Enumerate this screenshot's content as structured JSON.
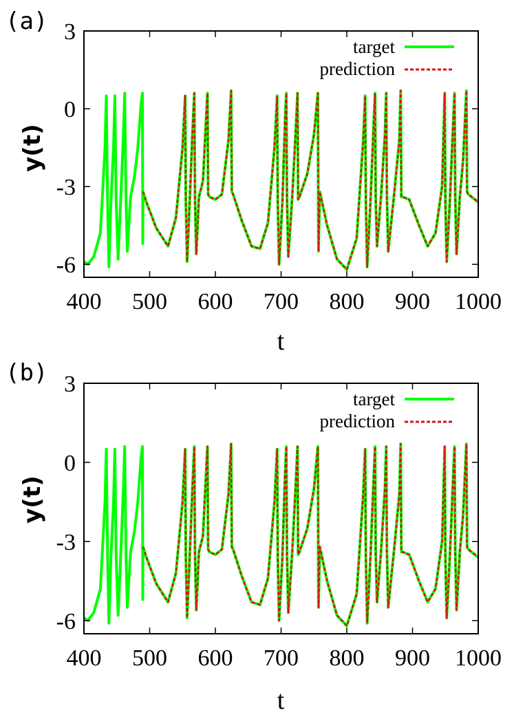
{
  "colors": {
    "target": "#00ff00",
    "prediction": "#dd1111",
    "axes": "#000000"
  },
  "chart_data": [
    {
      "type": "line",
      "panel_label": "(a)",
      "xlabel": "t",
      "ylabel": "y(t)",
      "xlim": [
        400,
        1000
      ],
      "ylim": [
        -6.5,
        3
      ],
      "xticks": [
        "400",
        "500",
        "600",
        "700",
        "800",
        "900",
        "1000"
      ],
      "yticks": [
        "3",
        "0",
        "-3",
        "-6"
      ],
      "ytick_values": [
        3,
        0,
        -3,
        -6
      ],
      "xtick_values": [
        400,
        500,
        600,
        700,
        800,
        900,
        1000
      ],
      "legend": "top-right",
      "prediction_start": 490,
      "series": [
        {
          "name": "target",
          "x": [
            400,
            406,
            415,
            425,
            432,
            434,
            436,
            438,
            441,
            445,
            447,
            449,
            452,
            456,
            460,
            462,
            464,
            466,
            471,
            477,
            482,
            487,
            489,
            489.5,
            490,
            495,
            510,
            528,
            540,
            550,
            554,
            555,
            557,
            561,
            565,
            568,
            569,
            571,
            575,
            581,
            588,
            589,
            591,
            600,
            610,
            620,
            624,
            625,
            627,
            640,
            655,
            668,
            680,
            690,
            694,
            695,
            697,
            702,
            706,
            708,
            709,
            711,
            717,
            722,
            725,
            726,
            728,
            740,
            750,
            756,
            757,
            759,
            770,
            785,
            800,
            815,
            825,
            828,
            829,
            831,
            836,
            841,
            843,
            844,
            846,
            852,
            858,
            860,
            861,
            863,
            872,
            880,
            882,
            883,
            885,
            895,
            910,
            923,
            935,
            945,
            949,
            950,
            952,
            957,
            962,
            964,
            965,
            967,
            972,
            977,
            982,
            983,
            985,
            1000
          ],
          "y": [
            -5.9,
            -6.0,
            -5.7,
            -4.8,
            -1.5,
            0.5,
            -3.6,
            -6.1,
            -3.6,
            -1.5,
            0.5,
            -3.6,
            -5.8,
            -3.5,
            -1.0,
            0.6,
            -3.5,
            -5.5,
            -3.4,
            -2.6,
            -1.5,
            0.2,
            0.6,
            -5.2,
            -3.2,
            -3.6,
            -4.6,
            -5.3,
            -4.2,
            -1.5,
            0.5,
            -3.5,
            -5.9,
            -3.5,
            -1.0,
            0.6,
            -3.5,
            -5.6,
            -3.4,
            -2.8,
            0.6,
            -3.3,
            -3.4,
            -3.5,
            -3.3,
            -1.2,
            0.7,
            -3.2,
            -3.3,
            -4.3,
            -5.3,
            -5.4,
            -4.4,
            -1.5,
            0.5,
            -3.6,
            -6.0,
            -3.6,
            -0.5,
            0.6,
            -3.5,
            -5.7,
            -3.4,
            -1.0,
            0.6,
            -3.5,
            -3.4,
            -2.5,
            -1.0,
            0.6,
            -5.5,
            -3.2,
            -4.5,
            -5.8,
            -6.2,
            -5.0,
            -1.2,
            0.5,
            -3.6,
            -6.1,
            -3.6,
            -0.5,
            0.6,
            -3.4,
            -5.3,
            -3.4,
            -1.0,
            0.6,
            -3.4,
            -5.5,
            -3.3,
            -1.2,
            0.7,
            -3.4,
            -3.4,
            -3.5,
            -4.5,
            -5.3,
            -4.8,
            -3.0,
            0.6,
            -3.6,
            -5.9,
            -3.5,
            -0.5,
            0.6,
            -3.4,
            -5.6,
            -3.4,
            -2.0,
            0.7,
            -3.2,
            -3.3,
            -3.6
          ]
        },
        {
          "name": "prediction",
          "x": [
            490,
            495,
            510,
            528,
            540,
            550,
            554,
            555,
            557,
            561,
            565,
            568,
            569,
            571,
            575,
            581,
            588,
            589,
            591,
            600,
            610,
            620,
            624,
            625,
            627,
            640,
            655,
            668,
            680,
            690,
            694,
            695,
            697,
            702,
            706,
            708,
            709,
            711,
            717,
            722,
            725,
            726,
            728,
            740,
            750,
            756,
            757,
            759,
            770,
            785,
            800,
            815,
            825,
            828,
            829,
            831,
            836,
            841,
            843,
            844,
            846,
            852,
            858,
            860,
            861,
            863,
            872,
            880,
            882,
            883,
            885,
            895,
            910,
            923,
            935,
            945,
            949,
            950,
            952,
            957,
            962,
            964,
            965,
            967,
            972,
            977,
            982,
            983,
            985,
            1000
          ],
          "y": [
            -3.2,
            -3.6,
            -4.6,
            -5.3,
            -4.2,
            -1.5,
            0.5,
            -3.5,
            -5.9,
            -3.5,
            -1.0,
            0.6,
            -3.5,
            -5.6,
            -3.4,
            -2.8,
            0.6,
            -3.3,
            -3.4,
            -3.5,
            -3.3,
            -1.2,
            0.7,
            -3.2,
            -3.3,
            -4.3,
            -5.3,
            -5.4,
            -4.4,
            -1.5,
            0.5,
            -3.6,
            -6.0,
            -3.6,
            -0.5,
            0.6,
            -3.5,
            -5.7,
            -3.4,
            -1.0,
            0.6,
            -3.5,
            -3.4,
            -2.5,
            -1.0,
            0.6,
            -5.5,
            -3.2,
            -4.5,
            -5.8,
            -6.2,
            -5.0,
            -1.2,
            0.5,
            -3.6,
            -6.1,
            -3.6,
            -0.5,
            0.6,
            -3.4,
            -5.3,
            -3.4,
            -1.0,
            0.6,
            -3.4,
            -5.5,
            -3.3,
            -1.2,
            0.7,
            -3.4,
            -3.4,
            -3.5,
            -4.5,
            -5.3,
            -4.8,
            -3.0,
            0.6,
            -3.6,
            -5.9,
            -3.5,
            -0.5,
            0.6,
            -3.4,
            -5.6,
            -3.4,
            -2.0,
            0.7,
            -3.2,
            -3.3,
            -3.6
          ]
        }
      ]
    },
    {
      "type": "line",
      "panel_label": "(b)",
      "xlabel": "t",
      "ylabel": "y(t)",
      "xlim": [
        400,
        1000
      ],
      "ylim": [
        -6.5,
        3
      ],
      "xticks": [
        "400",
        "500",
        "600",
        "700",
        "800",
        "900",
        "1000"
      ],
      "yticks": [
        "3",
        "0",
        "-3",
        "-6"
      ],
      "ytick_values": [
        3,
        0,
        -3,
        -6
      ],
      "xtick_values": [
        400,
        500,
        600,
        700,
        800,
        900,
        1000
      ],
      "legend": "top-right",
      "prediction_start": 490,
      "series": [
        {
          "name": "target",
          "x": [
            400,
            406,
            415,
            425,
            432,
            434,
            436,
            438,
            441,
            445,
            447,
            449,
            452,
            456,
            460,
            462,
            464,
            466,
            471,
            477,
            482,
            487,
            489,
            489.5,
            490,
            495,
            510,
            528,
            540,
            550,
            554,
            555,
            557,
            561,
            565,
            568,
            569,
            571,
            575,
            581,
            588,
            589,
            591,
            600,
            610,
            620,
            624,
            625,
            627,
            640,
            655,
            668,
            680,
            690,
            694,
            695,
            697,
            702,
            706,
            708,
            709,
            711,
            717,
            722,
            725,
            726,
            728,
            740,
            750,
            756,
            757,
            759,
            770,
            785,
            800,
            815,
            825,
            828,
            829,
            831,
            836,
            841,
            843,
            844,
            846,
            852,
            858,
            860,
            861,
            863,
            872,
            880,
            882,
            883,
            885,
            895,
            910,
            923,
            935,
            945,
            949,
            950,
            952,
            957,
            962,
            964,
            965,
            967,
            972,
            977,
            982,
            983,
            985,
            1000
          ],
          "y": [
            -5.9,
            -6.0,
            -5.7,
            -4.8,
            -1.5,
            0.5,
            -3.6,
            -6.1,
            -3.6,
            -1.5,
            0.5,
            -3.6,
            -5.8,
            -3.5,
            -1.0,
            0.6,
            -3.5,
            -5.5,
            -3.4,
            -2.6,
            -1.5,
            0.2,
            0.6,
            -5.2,
            -3.2,
            -3.6,
            -4.6,
            -5.3,
            -4.2,
            -1.5,
            0.5,
            -3.5,
            -5.9,
            -3.5,
            -1.0,
            0.6,
            -3.5,
            -5.6,
            -3.4,
            -2.8,
            0.6,
            -3.3,
            -3.4,
            -3.5,
            -3.3,
            -1.2,
            0.7,
            -3.2,
            -3.3,
            -4.3,
            -5.3,
            -5.4,
            -4.4,
            -1.5,
            0.5,
            -3.6,
            -6.0,
            -3.6,
            -0.5,
            0.6,
            -3.5,
            -5.7,
            -3.4,
            -1.0,
            0.6,
            -3.5,
            -3.4,
            -2.5,
            -1.0,
            0.6,
            -5.5,
            -3.2,
            -4.5,
            -5.8,
            -6.2,
            -5.0,
            -1.2,
            0.5,
            -3.6,
            -6.1,
            -3.6,
            -0.5,
            0.6,
            -3.4,
            -5.3,
            -3.4,
            -1.0,
            0.6,
            -3.4,
            -5.5,
            -3.3,
            -1.2,
            0.7,
            -3.4,
            -3.4,
            -3.5,
            -4.5,
            -5.3,
            -4.8,
            -3.0,
            0.6,
            -3.6,
            -5.9,
            -3.5,
            -0.5,
            0.6,
            -3.4,
            -5.6,
            -3.4,
            -2.0,
            0.7,
            -3.2,
            -3.3,
            -3.6
          ]
        },
        {
          "name": "prediction",
          "x": [
            490,
            495,
            510,
            528,
            540,
            550,
            554,
            555,
            557,
            561,
            565,
            568,
            569,
            571,
            575,
            581,
            588,
            589,
            591,
            600,
            610,
            620,
            624,
            625,
            627,
            640,
            655,
            668,
            680,
            690,
            694,
            695,
            697,
            702,
            706,
            708,
            709,
            711,
            717,
            722,
            725,
            726,
            728,
            740,
            750,
            756,
            757,
            759,
            770,
            785,
            800,
            815,
            825,
            828,
            829,
            831,
            836,
            841,
            843,
            844,
            846,
            852,
            858,
            860,
            861,
            863,
            872,
            880,
            882,
            883,
            885,
            895,
            910,
            923,
            935,
            945,
            949,
            950,
            952,
            957,
            962,
            964,
            965,
            967,
            972,
            977,
            982,
            983,
            985,
            1000
          ],
          "y": [
            -3.2,
            -3.6,
            -4.6,
            -5.3,
            -4.2,
            -1.5,
            0.5,
            -3.5,
            -5.9,
            -3.5,
            -1.0,
            0.6,
            -3.5,
            -5.6,
            -3.4,
            -2.8,
            0.6,
            -3.3,
            -3.4,
            -3.5,
            -3.3,
            -1.2,
            0.7,
            -3.2,
            -3.3,
            -4.3,
            -5.3,
            -5.4,
            -4.4,
            -1.5,
            0.5,
            -3.6,
            -6.0,
            -3.6,
            -0.5,
            0.6,
            -3.5,
            -5.7,
            -3.4,
            -1.0,
            0.6,
            -3.5,
            -3.4,
            -2.5,
            -1.0,
            0.6,
            -5.5,
            -3.2,
            -4.5,
            -5.8,
            -6.2,
            -5.0,
            -1.2,
            0.5,
            -3.6,
            -6.1,
            -3.6,
            -0.5,
            0.6,
            -3.4,
            -5.3,
            -3.4,
            -1.0,
            0.6,
            -3.4,
            -5.5,
            -3.3,
            -1.2,
            0.7,
            -3.4,
            -3.4,
            -3.5,
            -4.5,
            -5.3,
            -4.8,
            -3.0,
            0.6,
            -3.6,
            -5.9,
            -3.5,
            -0.5,
            0.6,
            -3.4,
            -5.6,
            -3.4,
            -2.0,
            0.7,
            -3.2,
            -3.3,
            -3.6
          ]
        }
      ]
    }
  ]
}
